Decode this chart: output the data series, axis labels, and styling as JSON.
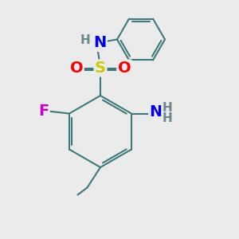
{
  "background_color": "#ebebeb",
  "bond_color": "#3d7a7a",
  "bond_width": 1.5,
  "atom_colors": {
    "N": "#0000ee",
    "O": "#ff0000",
    "S": "#cccc00",
    "F": "#cc00cc",
    "H": "#6a8a8a",
    "C": "#3d7a7a"
  },
  "font_size_large": 14,
  "font_size_small": 11
}
